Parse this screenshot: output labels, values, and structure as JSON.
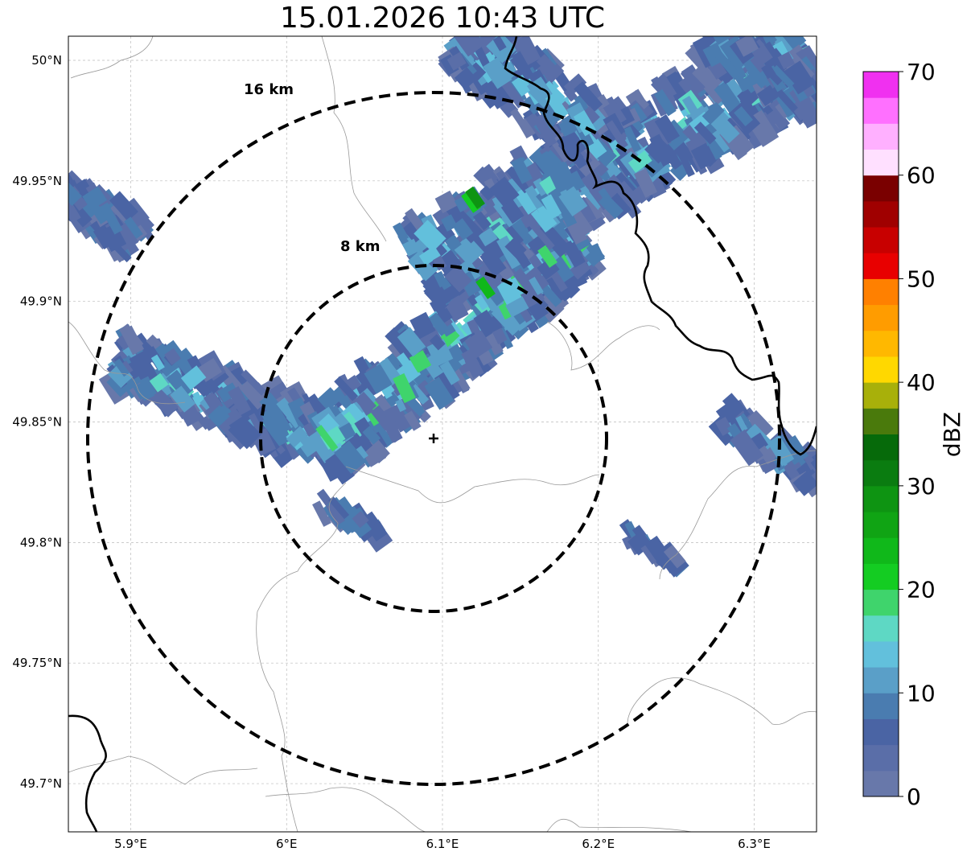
{
  "title": "15.01.2026 10:43 UTC",
  "map": {
    "lon_range": [
      5.86,
      6.34
    ],
    "lat_range": [
      49.68,
      50.01
    ],
    "lon_ticks": [
      {
        "value": 5.9,
        "label": "5.9°E"
      },
      {
        "value": 6.0,
        "label": "6°E"
      },
      {
        "value": 6.1,
        "label": "6.1°E"
      },
      {
        "value": 6.2,
        "label": "6.2°E"
      },
      {
        "value": 6.3,
        "label": "6.3°E"
      }
    ],
    "lat_ticks": [
      {
        "value": 50.0,
        "label": "50°N"
      },
      {
        "value": 49.95,
        "label": "49.95°N"
      },
      {
        "value": 49.9,
        "label": "49.9°N"
      },
      {
        "value": 49.85,
        "label": "49.85°N"
      },
      {
        "value": 49.8,
        "label": "49.8°N"
      },
      {
        "value": 49.75,
        "label": "49.75°N"
      },
      {
        "value": 49.7,
        "label": "49.7°N"
      }
    ],
    "grid": true,
    "radar_site": {
      "lon": 6.094,
      "lat": 49.843
    },
    "range_rings": [
      {
        "label": "8 km"
      },
      {
        "label": "16 km"
      }
    ],
    "colors": {
      "ring": "#000000",
      "border": "#000000",
      "admin_line": "#999999",
      "grid": "#bbbbbb"
    }
  },
  "colorbar": {
    "label": "dBZ",
    "min": 0,
    "max": 70,
    "step": 2.5,
    "tick_values": [
      0,
      10,
      20,
      30,
      40,
      50,
      60,
      70
    ],
    "tick_labels": [
      "0",
      "10",
      "20",
      "30",
      "40",
      "50",
      "60",
      "70"
    ],
    "colors": [
      "#6878aa",
      "#5a6ea8",
      "#4a64a4",
      "#4a7cb0",
      "#5a9fc8",
      "#62c0dc",
      "#5ed8c4",
      "#3fd46c",
      "#14cc22",
      "#10b81a",
      "#10a414",
      "#0e9412",
      "#0a7c10",
      "#066a0a",
      "#4a7a0c",
      "#a8b00a",
      "#ffd800",
      "#ffb800",
      "#ff9c00",
      "#ff8000",
      "#e80000",
      "#c80000",
      "#a00000",
      "#7a0000",
      "#ffe0ff",
      "#ffb0ff",
      "#ff70ff",
      "#f030f0"
    ]
  }
}
